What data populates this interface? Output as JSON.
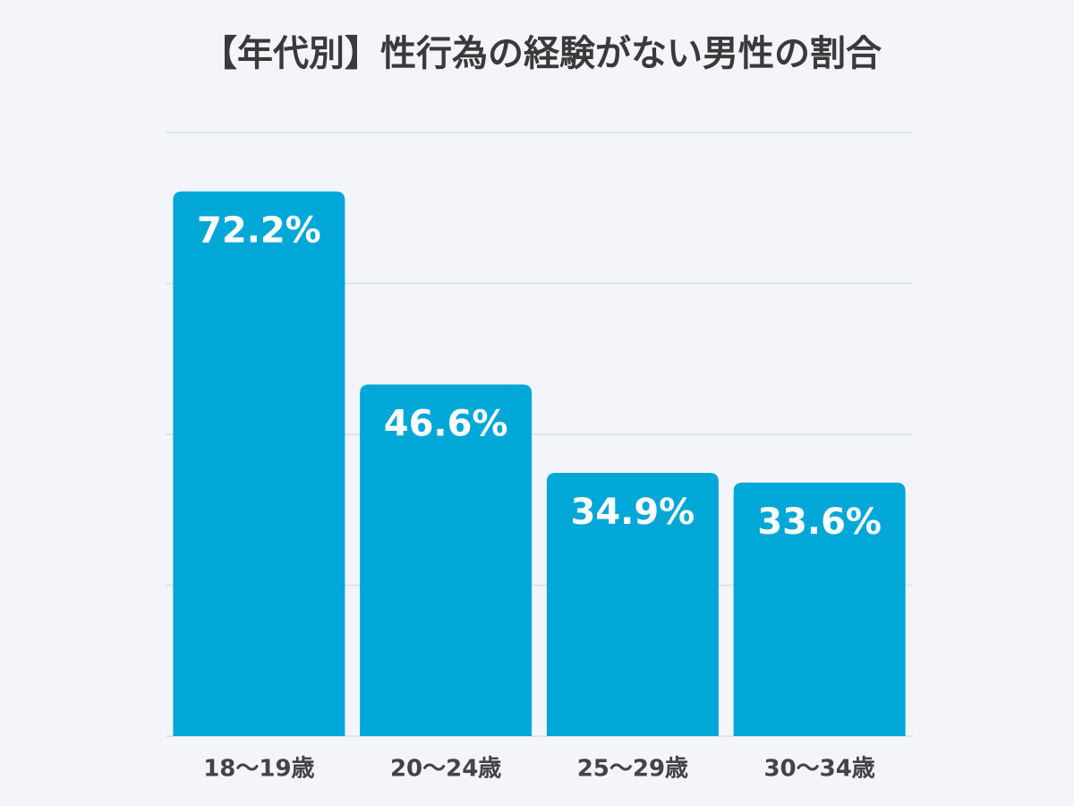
{
  "chart_data": {
    "type": "bar",
    "title": "【年代別】性行為の経験がない男性の割合",
    "categories": [
      "18〜19歳",
      "20〜24歳",
      "25〜29歳",
      "30〜34歳"
    ],
    "values": [
      72.2,
      46.6,
      34.9,
      33.6
    ],
    "value_labels": [
      "72.2%",
      "46.6%",
      "34.9%",
      "33.6%"
    ],
    "color": "#00a7d7",
    "ylim": [
      0,
      80
    ],
    "yticks": [
      0,
      20,
      40,
      60,
      80
    ],
    "grid": true
  }
}
